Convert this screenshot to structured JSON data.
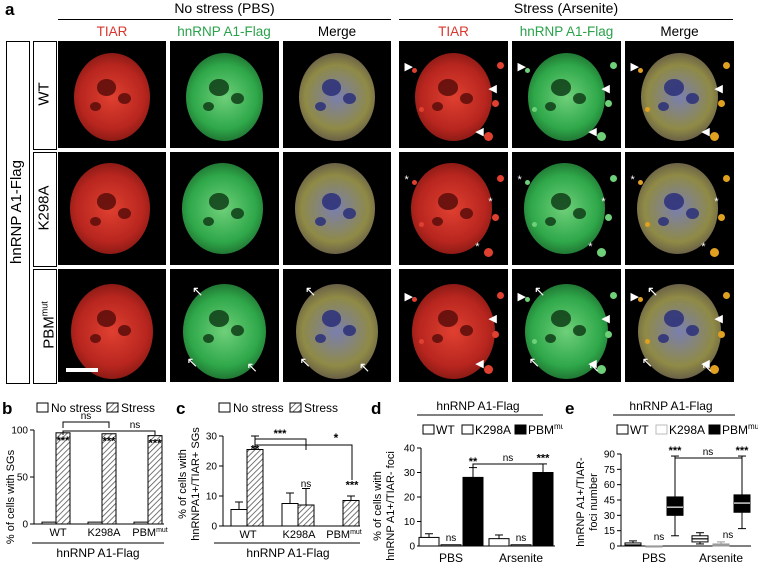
{
  "panel_a": {
    "letter": "a",
    "group_no_stress": "No stress (PBS)",
    "group_stress": "Stress (Arsenite)",
    "channel_tiar": "TIAR",
    "channel_hnrnp": "hnRNP A1-Flag",
    "channel_merge": "Merge",
    "row_axis_label": "hnRNP A1-Flag",
    "row_wt": "WT",
    "row_k298a": "K298A",
    "row_pbm": "PBM",
    "row_pbm_sup": "mut"
  },
  "panel_b": {
    "letter": "b",
    "legend_no_stress": "No stress",
    "legend_stress": "Stress",
    "ylabel": "% of cells with SGs",
    "xlabel": "hnRNP A1-Flag",
    "cat_wt": "WT",
    "cat_k298a": "K298A",
    "cat_pbm": "PBM",
    "cat_pbm_sup": "mut",
    "sig_1": "***",
    "sig_2": "***",
    "sig_3": "***",
    "ns_1": "ns",
    "ns_2": "ns",
    "ticks": [
      "0",
      "50",
      "100"
    ]
  },
  "panel_c": {
    "letter": "c",
    "legend_no_stress": "No stress",
    "legend_stress": "Stress",
    "ylabel_1": "% of cells with",
    "ylabel_2": "hnRNPA1+/TIAR+ SGs",
    "xlabel": "hnRNP A1-Flag",
    "cat_wt": "WT",
    "cat_k298a": "K298A",
    "cat_pbm": "PBM",
    "cat_pbm_sup": "mut",
    "sig_wt": "**",
    "sig_k298a": "ns",
    "sig_pbm": "***",
    "bracket_1": "***",
    "bracket_2": "*",
    "ticks": [
      "0",
      "10",
      "20",
      "30"
    ]
  },
  "panel_d": {
    "letter": "d",
    "title": "hnRNP A1-Flag",
    "legend_wt": "WT",
    "legend_k298a": "K298A",
    "legend_pbm": "PBM",
    "legend_pbm_sup": "mut",
    "ylabel_1": "% of cells with",
    "ylabel_2": "hnRNP A1+/TIAR- foci",
    "cat_pbs": "PBS",
    "cat_arsenite": "Arsenite",
    "sig_pbs_k": "ns",
    "sig_pbs_p": "**",
    "sig_ars_k": "ns",
    "sig_ars_p": "***",
    "bracket": "ns",
    "ticks": [
      "0",
      "10",
      "20",
      "30",
      "40"
    ]
  },
  "panel_e": {
    "letter": "e",
    "title": "hnRNP A1-Flag",
    "legend_wt": "WT",
    "legend_k298a": "K298A",
    "legend_pbm": "PBM",
    "legend_pbm_sup": "mut",
    "ylabel_1": "hnRNP A1+/TIAR-",
    "ylabel_2": "foci number",
    "cat_pbs": "PBS",
    "cat_arsenite": "Arsenite",
    "sig_pbs_k": "ns",
    "sig_pbs_p": "***",
    "sig_ars_k": "ns",
    "sig_ars_p": "***",
    "bracket": "ns",
    "ticks": [
      "0",
      "15",
      "30",
      "45",
      "60",
      "75",
      "90"
    ]
  },
  "chart_data": [
    {
      "type": "bar",
      "panel": "b",
      "categories": [
        "WT",
        "K298A",
        "PBMmut"
      ],
      "series": [
        {
          "name": "No stress",
          "values": [
            2,
            2,
            2
          ]
        },
        {
          "name": "Stress",
          "values": [
            97,
            96,
            94
          ]
        }
      ],
      "ylabel": "% of cells with SGs",
      "xlabel": "hnRNP A1-Flag",
      "ylim": [
        0,
        100
      ]
    },
    {
      "type": "bar",
      "panel": "c",
      "categories": [
        "WT",
        "K298A",
        "PBMmut"
      ],
      "series": [
        {
          "name": "No stress",
          "values": [
            5.5,
            7.5,
            0
          ],
          "errors": [
            2.5,
            3.5,
            0
          ]
        },
        {
          "name": "Stress",
          "values": [
            25.5,
            7,
            8.5
          ],
          "errors": [
            4.5,
            5.5,
            1.5
          ]
        }
      ],
      "ylabel": "% of cells with hnRNPA1+/TIAR+ SGs",
      "xlabel": "hnRNP A1-Flag",
      "ylim": [
        0,
        30
      ]
    },
    {
      "type": "bar",
      "panel": "d",
      "categories": [
        "PBS",
        "Arsenite"
      ],
      "series": [
        {
          "name": "WT",
          "values": [
            3.5,
            3
          ],
          "errors": [
            1.5,
            1.5
          ]
        },
        {
          "name": "K298A",
          "values": [
            0.5,
            0.5
          ],
          "errors": [
            0,
            0
          ]
        },
        {
          "name": "PBMmut",
          "values": [
            28,
            30
          ],
          "errors": [
            4,
            3.5
          ]
        }
      ],
      "ylabel": "% of cells with hnRNP A1+/TIAR- foci",
      "ylim": [
        0,
        40
      ]
    },
    {
      "type": "box",
      "panel": "e",
      "categories": [
        "PBS",
        "Arsenite"
      ],
      "series": [
        {
          "name": "WT",
          "boxes": [
            [
              0,
              0,
              1,
              3,
              5
            ],
            [
              2,
              4,
              7,
              10,
              13
            ]
          ]
        },
        {
          "name": "K298A",
          "boxes": [
            [
              0,
              0,
              0,
              0,
              0
            ],
            [
              0,
              0,
              1,
              2,
              4
            ]
          ]
        },
        {
          "name": "PBMmut",
          "boxes": [
            [
              10,
              30,
              38,
              48,
              88
            ],
            [
              17,
              33,
              42,
              50,
              88
            ]
          ]
        }
      ],
      "ylabel": "hnRNP A1+/TIAR- foci number",
      "ylim": [
        0,
        90
      ]
    }
  ]
}
